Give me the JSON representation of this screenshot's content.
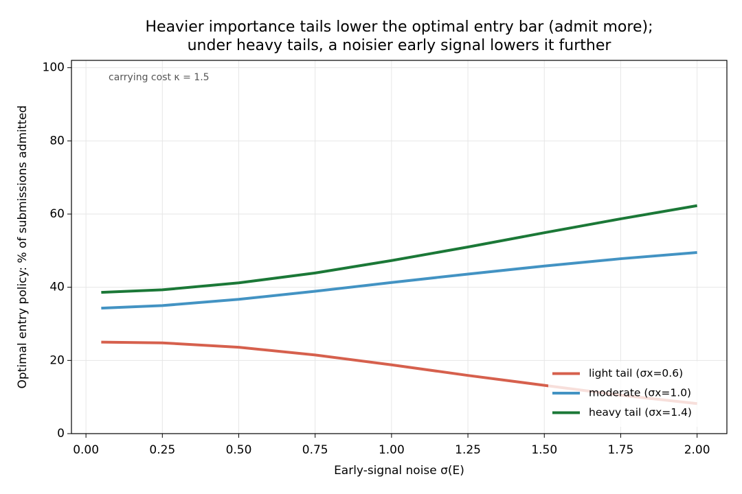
{
  "chart_data": {
    "type": "line",
    "title": [
      "Heavier importance tails lower the optimal entry bar (admit more);",
      "under heavy tails, a noisier early signal lowers it further"
    ],
    "xlabel": "Early-signal noise σ(E)",
    "ylabel": "Optimal entry policy: % of submissions admitted",
    "annotation": "carrying cost κ = 1.5",
    "x": [
      0.05,
      0.25,
      0.5,
      0.75,
      1.0,
      1.25,
      1.5,
      1.75,
      2.0
    ],
    "series": [
      {
        "name": "light tail (σx=0.6)",
        "color": "#d6604d",
        "values": [
          25.0,
          24.8,
          23.6,
          21.5,
          18.8,
          15.9,
          13.2,
          10.5,
          8.2
        ]
      },
      {
        "name": "moderate (σx=1.0)",
        "color": "#4393c3",
        "values": [
          34.3,
          35.0,
          36.7,
          38.9,
          41.3,
          43.6,
          45.8,
          47.8,
          49.5
        ]
      },
      {
        "name": "heavy tail (σx=1.4)",
        "color": "#1b7837",
        "values": [
          38.6,
          39.3,
          41.2,
          43.9,
          47.3,
          51.0,
          54.9,
          58.7,
          62.3
        ]
      }
    ],
    "xlim": [
      -0.0475,
      2.0975
    ],
    "ylim": [
      0,
      102
    ],
    "xticks": [
      {
        "value": 0,
        "label": "0.00"
      },
      {
        "value": 0.25,
        "label": "0.25"
      },
      {
        "value": 0.5,
        "label": "0.50"
      },
      {
        "value": 0.75,
        "label": "0.75"
      },
      {
        "value": 1,
        "label": "1.00"
      },
      {
        "value": 1.25,
        "label": "1.25"
      },
      {
        "value": 1.5,
        "label": "1.50"
      },
      {
        "value": 1.75,
        "label": "1.75"
      },
      {
        "value": 2,
        "label": "2.00"
      }
    ],
    "yticks": [
      0,
      20,
      40,
      60,
      80,
      100
    ],
    "grid": true,
    "legend": "lower right"
  }
}
